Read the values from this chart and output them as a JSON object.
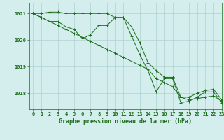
{
  "title": "Graphe pression niveau de la mer (hPa)",
  "background_color": "#d4eeee",
  "grid_color": "#b0d0d0",
  "line_color": "#1a6b1a",
  "xlim": [
    -0.5,
    23
  ],
  "ylim": [
    1017.4,
    1021.4
  ],
  "yticks": [
    1018,
    1019,
    1020,
    1021
  ],
  "xticks": [
    0,
    1,
    2,
    3,
    4,
    5,
    6,
    7,
    8,
    9,
    10,
    11,
    12,
    13,
    14,
    15,
    16,
    17,
    18,
    19,
    20,
    21,
    22,
    23
  ],
  "series": [
    {
      "x": [
        0,
        1,
        2,
        3,
        4,
        5,
        6,
        7,
        8,
        9,
        10,
        11,
        12,
        13,
        14,
        15,
        16,
        17,
        18,
        19,
        20,
        21,
        22,
        23
      ],
      "y": [
        1021.0,
        1021.0,
        1021.05,
        1021.05,
        1021.0,
        1021.0,
        1021.0,
        1021.0,
        1021.0,
        1021.0,
        1020.85,
        1020.85,
        1020.5,
        1019.9,
        1019.15,
        1018.85,
        1018.6,
        1018.6,
        1017.85,
        1017.85,
        1018.0,
        1018.1,
        1018.15,
        1017.75
      ]
    },
    {
      "x": [
        0,
        1,
        2,
        3,
        4,
        5,
        6,
        7,
        8,
        9,
        10,
        11,
        12,
        13,
        14,
        15,
        16,
        17,
        18,
        19,
        20,
        21,
        22,
        23
      ],
      "y": [
        1021.0,
        1020.85,
        1020.7,
        1020.55,
        1020.4,
        1020.25,
        1020.1,
        1019.95,
        1019.8,
        1019.65,
        1019.5,
        1019.35,
        1019.2,
        1019.05,
        1018.9,
        1018.55,
        1018.4,
        1018.25,
        1017.85,
        1017.75,
        1017.8,
        1017.85,
        1017.9,
        1017.7
      ]
    },
    {
      "x": [
        0,
        1,
        2,
        3,
        4,
        5,
        6,
        7,
        8,
        9,
        10,
        11,
        12,
        13,
        14,
        15,
        16,
        17,
        18,
        19,
        20,
        21,
        22,
        23
      ],
      "y": [
        1021.0,
        1020.85,
        1020.7,
        1020.7,
        1020.5,
        1020.4,
        1020.05,
        1020.2,
        1020.55,
        1020.55,
        1020.85,
        1020.85,
        1020.15,
        1019.45,
        1018.85,
        1018.05,
        1018.55,
        1018.55,
        1017.65,
        1017.7,
        1017.85,
        1018.05,
        1018.05,
        1017.65
      ]
    }
  ]
}
